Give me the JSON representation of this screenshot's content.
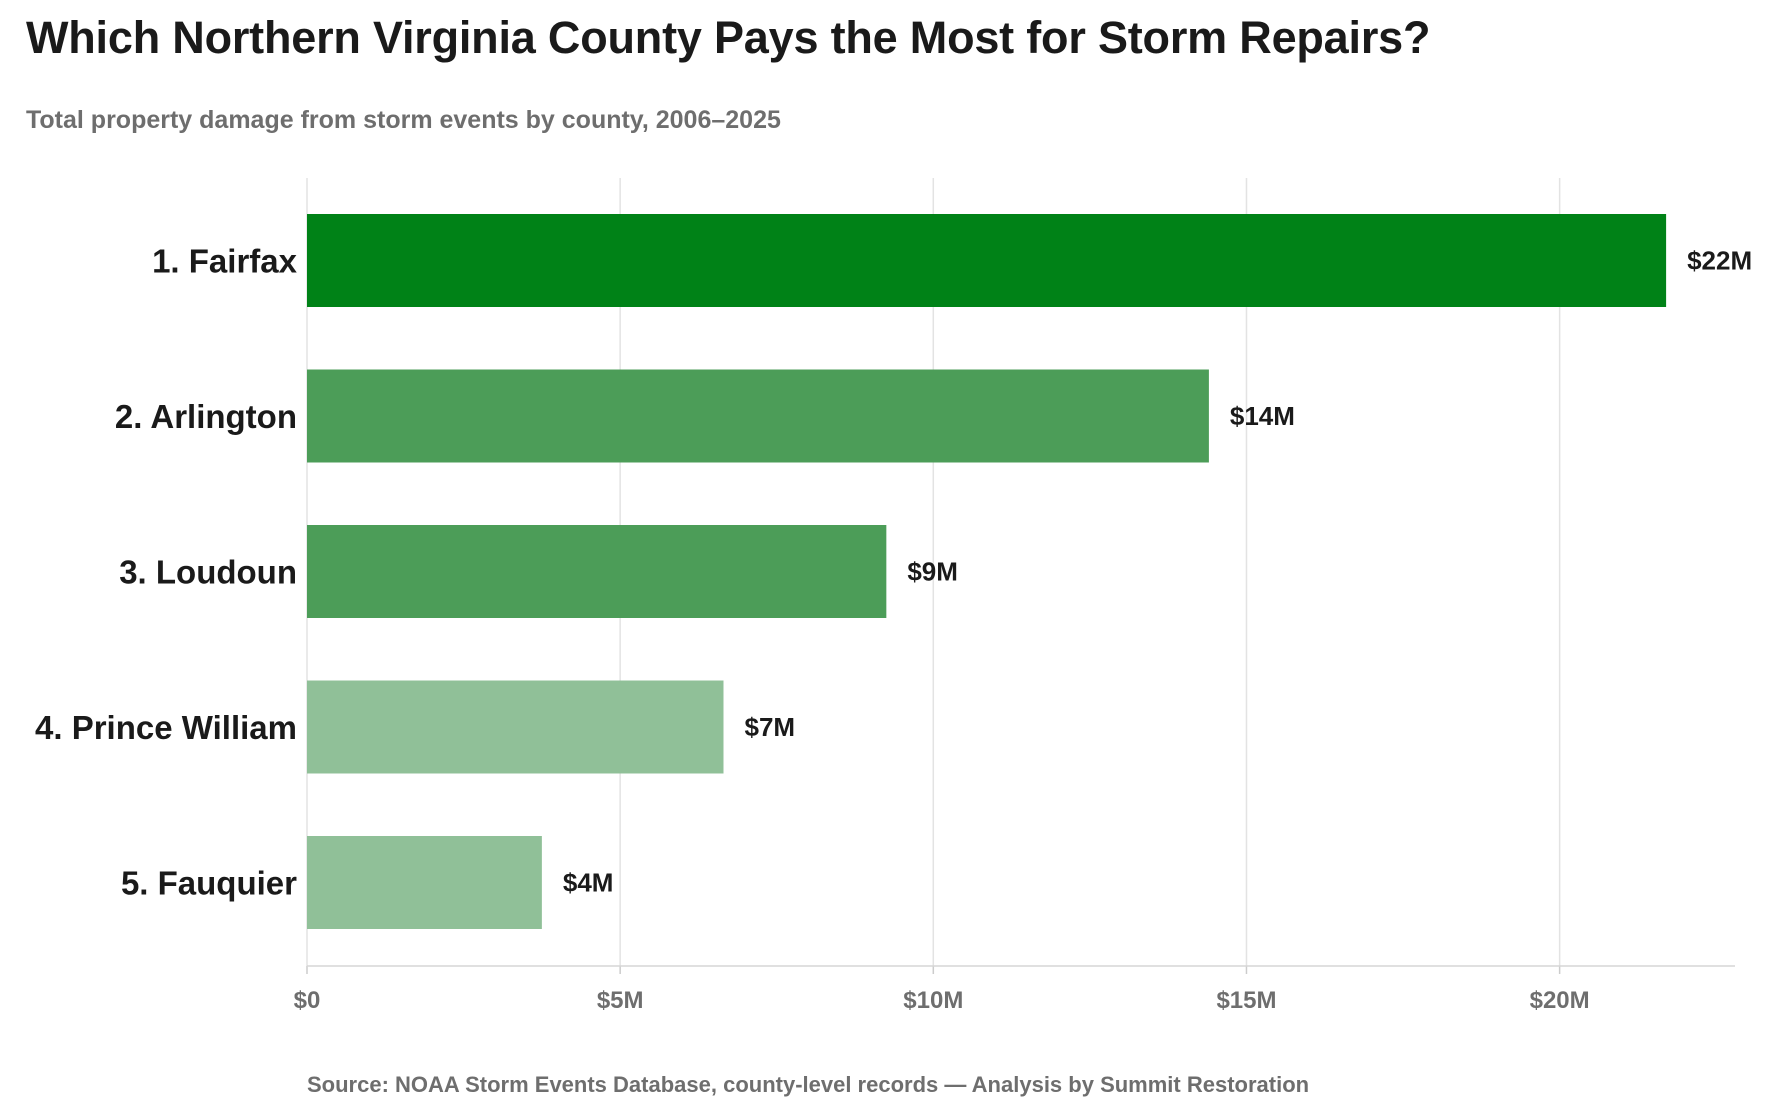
{
  "chart_data": {
    "type": "bar",
    "orientation": "horizontal",
    "title": "Which Northern Virginia County Pays the Most for Storm Repairs?",
    "subtitle": "Total property damage from storm events by county, 2006–2025",
    "source": "Source: NOAA Storm Events Database, county-level records  —  Analysis by Summit Restoration",
    "categories": [
      "1. Fairfax",
      "2. Arlington",
      "3. Loudoun",
      "4. Prince William",
      "5. Fauquier"
    ],
    "values": [
      21.7,
      14.4,
      9.25,
      6.65,
      3.75
    ],
    "value_labels": [
      "$22M",
      "$14M",
      "$9M",
      "$7M",
      "$4M"
    ],
    "value_unit": "millions USD",
    "colors": [
      "#008217",
      "#4c9d58",
      "#4c9d58",
      "#90c098",
      "#90c098"
    ],
    "xlim": [
      0,
      22.8
    ],
    "x_ticks": [
      0,
      5,
      10,
      15,
      20
    ],
    "x_tick_labels": [
      "$0",
      "$5M",
      "$10M",
      "$15M",
      "$20M"
    ],
    "xlabel": "",
    "ylabel": "",
    "grid": "vertical",
    "legend": "none"
  }
}
